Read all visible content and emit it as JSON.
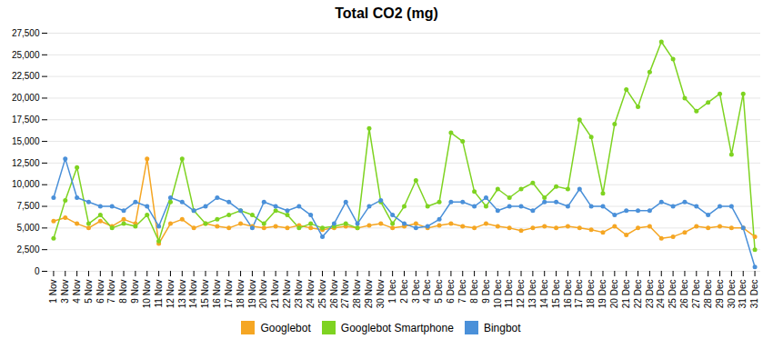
{
  "chart_data": {
    "type": "line",
    "title": "Total CO2 (mg)",
    "categories": [
      "1 Nov",
      "3 Nov",
      "4 Nov",
      "5 Nov",
      "6 Nov",
      "7 Nov",
      "8 Nov",
      "9 Nov",
      "10 Nov",
      "11 Nov",
      "12 Nov",
      "13 Nov",
      "14 Nov",
      "15 Nov",
      "16 Nov",
      "17 Nov",
      "18 Nov",
      "19 Nov",
      "20 Nov",
      "21 Nov",
      "22 Nov",
      "23 Nov",
      "24 Nov",
      "25 Nov",
      "26 Nov",
      "27 Nov",
      "28 Nov",
      "29 Nov",
      "30 Nov",
      "1 Dec",
      "2 Dec",
      "3 Dec",
      "4 Dec",
      "5 Dec",
      "6 Dec",
      "7 Dec",
      "8 Dec",
      "9 Dec",
      "10 Dec",
      "11 Dec",
      "12 Dec",
      "13 Dec",
      "14 Dec",
      "15 Dec",
      "16 Dec",
      "17 Dec",
      "18 Dec",
      "19 Dec",
      "20 Dec",
      "21 Dec",
      "22 Dec",
      "23 Dec",
      "24 Dec",
      "25 Dec",
      "26 Dec",
      "27 Dec",
      "28 Dec",
      "29 Dec",
      "30 Dec",
      "31 Dec",
      "31 Dec"
    ],
    "series": [
      {
        "name": "Googlebot",
        "color": "#f5a623",
        "values": [
          5800,
          6200,
          5500,
          5000,
          5800,
          5200,
          6000,
          5500,
          13000,
          3200,
          5500,
          6000,
          5000,
          5500,
          5200,
          5000,
          5500,
          5200,
          5000,
          5200,
          5000,
          5300,
          5000,
          4800,
          5000,
          5200,
          5000,
          5300,
          5500,
          5000,
          5200,
          5500,
          5000,
          5300,
          5500,
          5200,
          5000,
          5500,
          5200,
          5000,
          4700,
          5000,
          5200,
          5000,
          5200,
          5000,
          4800,
          4500,
          5200,
          4200,
          5000,
          5200,
          3800,
          4000,
          4500,
          5200,
          5000,
          5200,
          5000,
          5000,
          4000
        ]
      },
      {
        "name": "Googlebot Smartphone",
        "color": "#7ed321",
        "values": [
          3800,
          8200,
          12000,
          5500,
          6500,
          5000,
          5500,
          5200,
          6500,
          3500,
          8000,
          13000,
          7000,
          5500,
          6000,
          6500,
          7000,
          6500,
          5500,
          7000,
          6500,
          5000,
          5500,
          5000,
          5200,
          5500,
          5000,
          16500,
          8000,
          5500,
          7500,
          10500,
          7500,
          8000,
          16000,
          15000,
          9200,
          7500,
          9500,
          8500,
          9500,
          10200,
          8500,
          9800,
          9500,
          17500,
          15500,
          9000,
          17000,
          21000,
          19000,
          23000,
          26500,
          24500,
          20000,
          18500,
          19500,
          20500,
          13500,
          20500,
          2500
        ]
      },
      {
        "name": "Bingbot",
        "color": "#4a90d9",
        "values": [
          8500,
          13000,
          8500,
          8000,
          7500,
          7500,
          7000,
          8000,
          7500,
          5200,
          8500,
          8000,
          7000,
          7500,
          8500,
          8000,
          7000,
          5000,
          8000,
          7500,
          7000,
          7500,
          6500,
          4000,
          5500,
          8000,
          5500,
          7500,
          8200,
          6500,
          5500,
          5000,
          5200,
          6000,
          8000,
          8000,
          7500,
          8500,
          7000,
          7500,
          7500,
          7000,
          8000,
          8000,
          7500,
          9500,
          7500,
          7500,
          6500,
          7000,
          7000,
          7000,
          8000,
          7500,
          8000,
          7500,
          6500,
          7500,
          7500,
          5000,
          500
        ]
      }
    ],
    "marker": "circle",
    "ylim": [
      0,
      27500
    ],
    "yticks": [
      0,
      {
        "value": 2500,
        "label": "2,500"
      },
      {
        "value": 5000,
        "label": "5,000"
      },
      {
        "value": 7500,
        "label": "7,500"
      },
      {
        "value": 10000,
        "label": "10,000"
      },
      {
        "value": 12500,
        "label": "12,500"
      },
      {
        "value": 15000,
        "label": "15,000"
      },
      {
        "value": 17500,
        "label": "17,500"
      },
      {
        "value": 20000,
        "label": "20,000"
      },
      {
        "value": 22500,
        "label": "22,500"
      },
      {
        "value": 25000,
        "label": "25,000"
      },
      {
        "value": 27500,
        "label": "27,500"
      }
    ],
    "grid": true,
    "legend": "bottom"
  }
}
